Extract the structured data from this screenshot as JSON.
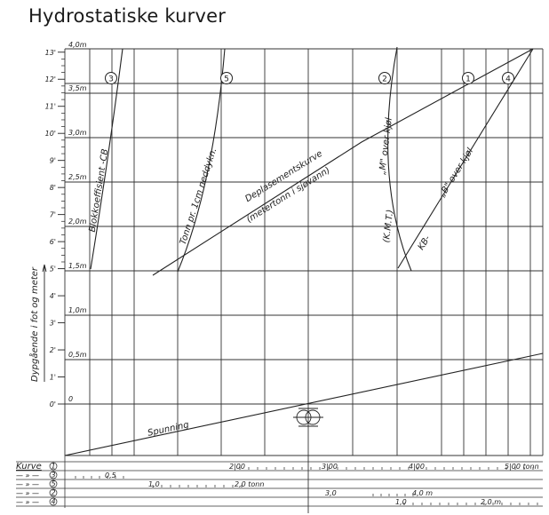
{
  "title": "Hydrostatiske kurver",
  "y_axis": {
    "label": "Dypgående i fot og meter",
    "feet_labels": [
      "0'",
      "1'",
      "2'",
      "3'",
      "4'",
      "5'",
      "6'",
      "7'",
      "8'",
      "9'",
      "10'",
      "11'",
      "12'",
      "13'"
    ],
    "meter_labels": [
      "0",
      "0,5m",
      "1,0m",
      "1,5m",
      "2,0m",
      "2,5m",
      "3,0m",
      "3,5m",
      "4,0m"
    ]
  },
  "curves": [
    {
      "number": "1",
      "label": "Deplasementskurve",
      "sublabel": "(metertonn i sjøvann)"
    },
    {
      "number": "2",
      "label": "„M\" over kjøl",
      "sublabel": "(K.M.T.)"
    },
    {
      "number": "3",
      "label": "Blokkoeffisient -CB"
    },
    {
      "number": "4",
      "label": "„B\" over kjøl",
      "sublabel": "KB-"
    },
    {
      "number": "5",
      "label": "Tonn pr. 1cm neddykn."
    }
  ],
  "spunning_label": "Spunning",
  "scale_table": {
    "header": "Kurve",
    "rows": [
      {
        "curve": "1",
        "prefix": "",
        "labels": [
          "2|00",
          "3|00",
          "4|00",
          "5|00 tonn"
        ]
      },
      {
        "curve": "3",
        "prefix": "— » —",
        "labels": [
          "0,5"
        ]
      },
      {
        "curve": "5",
        "prefix": "— » —",
        "labels": [
          "1,0",
          "2,0 tonn"
        ]
      },
      {
        "curve": "2",
        "prefix": "— » —",
        "labels": [
          "3,0",
          "4,0 m"
        ]
      },
      {
        "curve": "4",
        "prefix": "— » —",
        "labels": [
          "1,0",
          "2,0 m"
        ]
      }
    ]
  },
  "colors": {
    "ink": "#222222",
    "paper": "#ffffff"
  }
}
